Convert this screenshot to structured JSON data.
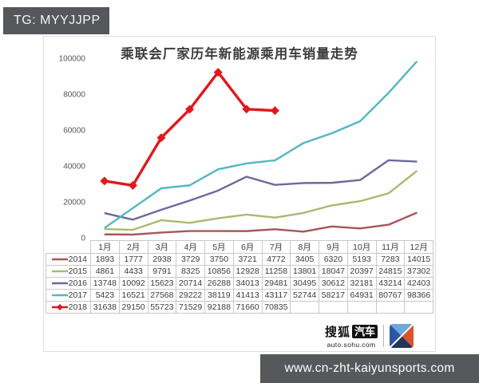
{
  "badge": {
    "text": "TG: MYYJJPP",
    "bg": "#56575a"
  },
  "watermark": {
    "text": "www.cn-zht-kaiyunsports.com",
    "bg": "#57585b"
  },
  "logo": {
    "brand": "搜狐",
    "brand2": "汽车",
    "domain": "auto.sohu.com"
  },
  "chart_data": {
    "type": "line",
    "title": "乘联会厂家历年新能源乘用车销量走势",
    "categories": [
      "1月",
      "2月",
      "3月",
      "4月",
      "5月",
      "6月",
      "7月",
      "8月",
      "9月",
      "10月",
      "11月",
      "12月"
    ],
    "series": [
      {
        "name": "2014",
        "color": "#a9545c",
        "marker": "none",
        "values": [
          1893,
          1777,
          2938,
          3729,
          3750,
          3721,
          4772,
          3405,
          6320,
          5193,
          7283,
          14015
        ]
      },
      {
        "name": "2015",
        "color": "#a7bb70",
        "marker": "none",
        "values": [
          4861,
          4433,
          9791,
          8325,
          10856,
          12928,
          11258,
          13801,
          18047,
          20397,
          24815,
          37302
        ]
      },
      {
        "name": "2016",
        "color": "#6a6a9e",
        "marker": "none",
        "values": [
          13748,
          10092,
          15623,
          20714,
          26288,
          34013,
          29481,
          30495,
          30612,
          32181,
          43214,
          42403
        ]
      },
      {
        "name": "2017",
        "color": "#53b6c3",
        "marker": "none",
        "values": [
          5423,
          16521,
          27568,
          29222,
          38119,
          41413,
          43117,
          52744,
          58217,
          64931,
          80767,
          98366
        ]
      },
      {
        "name": "2018",
        "color": "#e2181c",
        "marker": "diamond",
        "values": [
          31638,
          29150,
          55723,
          71529,
          92188,
          71660,
          70835
        ]
      }
    ],
    "ylim": [
      0,
      100000
    ],
    "y_ticks": [
      0,
      20000,
      40000,
      60000,
      80000,
      100000
    ],
    "grid": false,
    "legend_position": "table-left"
  }
}
